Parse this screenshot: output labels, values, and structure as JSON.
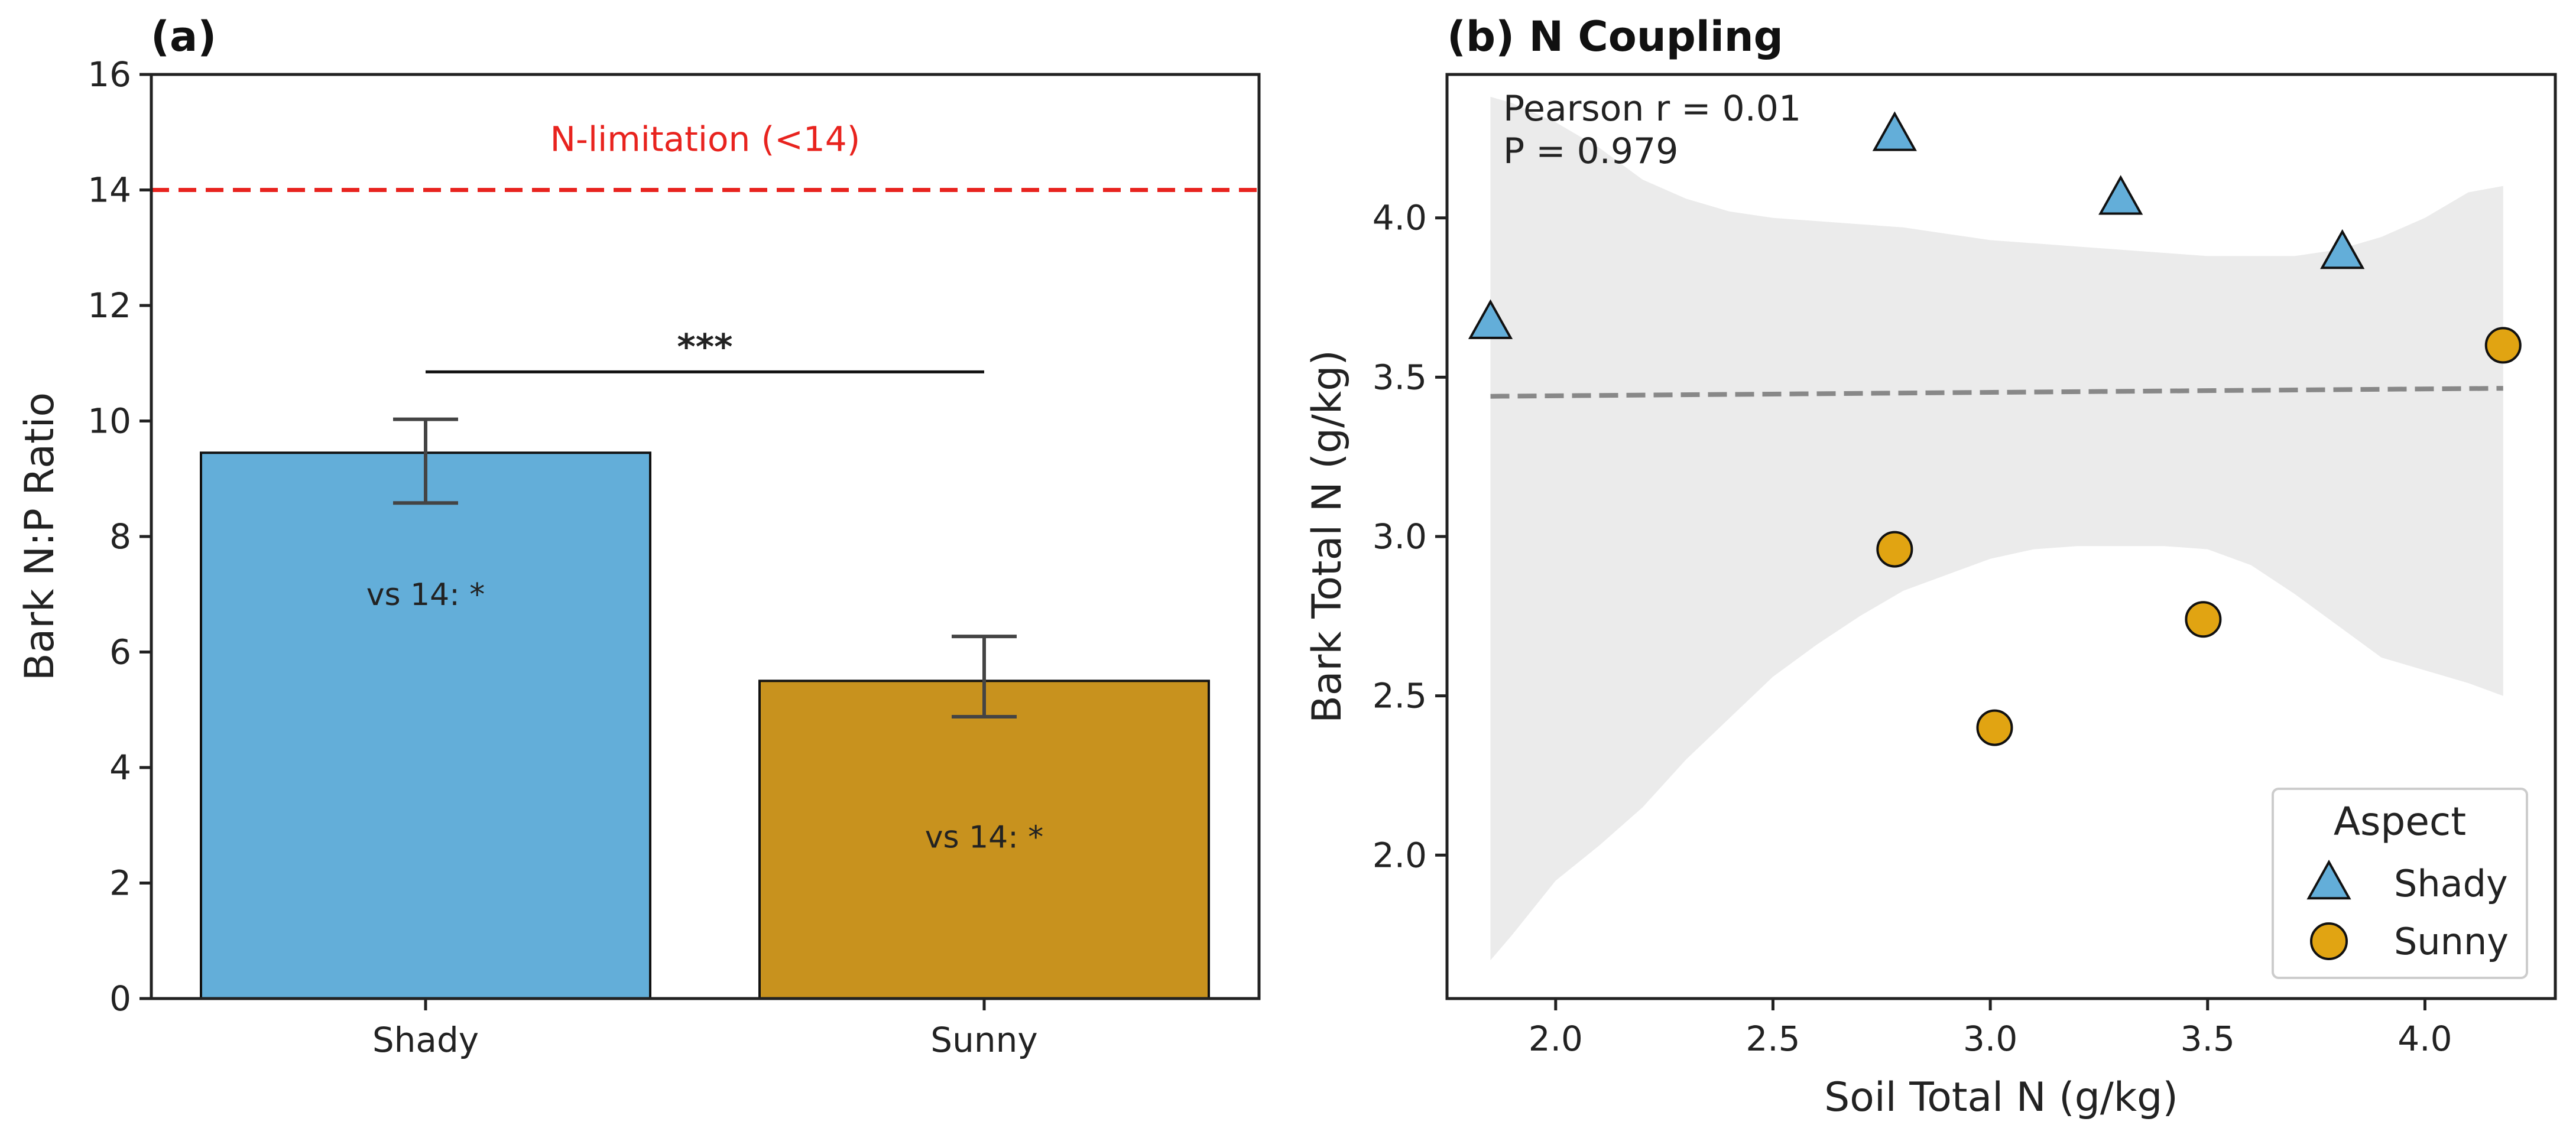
{
  "colors": {
    "shady": "#63AED9",
    "sunny": "#C8921E",
    "sunny_marker": "#E1A412",
    "threshold": "#E8231E",
    "ci_band": "#EBEBEB",
    "fit_line": "#888888",
    "error_bar": "#444444"
  },
  "chart_data": [
    {
      "type": "bar",
      "title": "(a)",
      "xlabel": "",
      "ylabel": "Bark N:P Ratio",
      "categories": [
        "Shady",
        "Sunny"
      ],
      "values": [
        9.45,
        5.5
      ],
      "errors_low": [
        8.58,
        4.88
      ],
      "errors_high": [
        10.03,
        6.27
      ],
      "bar_annotations": [
        "vs 14: *",
        "vs 14: *"
      ],
      "annotation_y": [
        7.0,
        2.8
      ],
      "ylim": [
        0,
        16
      ],
      "yticks": [
        0,
        2,
        4,
        6,
        8,
        10,
        12,
        14,
        16
      ],
      "ytick_labels": [
        "0",
        "2",
        "4",
        "6",
        "8",
        "10",
        "12",
        "14",
        "16"
      ],
      "reference_line": {
        "y": 14,
        "label": "N-limitation (<14)",
        "style": "dashed"
      },
      "significance": {
        "label": "***",
        "y": 10.85
      },
      "grid": false
    },
    {
      "type": "scatter",
      "title": "(b) N Coupling",
      "xlabel": "Soil Total N (g/kg)",
      "ylabel": "Bark Total N (g/kg)",
      "xlim": [
        1.75,
        4.3
      ],
      "ylim": [
        1.55,
        4.45
      ],
      "xticks": [
        2.0,
        2.5,
        3.0,
        3.5,
        4.0
      ],
      "xtick_labels": [
        "2.0",
        "2.5",
        "3.0",
        "3.5",
        "4.0"
      ],
      "yticks": [
        2.0,
        2.5,
        3.0,
        3.5,
        4.0
      ],
      "ytick_labels": [
        "2.0",
        "2.5",
        "3.0",
        "3.5",
        "4.0"
      ],
      "series": [
        {
          "name": "Shady",
          "marker": "triangle",
          "x": [
            1.85,
            2.78,
            3.3,
            3.81
          ],
          "y": [
            3.67,
            4.26,
            4.06,
            3.89
          ]
        },
        {
          "name": "Sunny",
          "marker": "circle",
          "x": [
            2.78,
            3.01,
            3.49,
            4.18
          ],
          "y": [
            2.96,
            2.4,
            2.74,
            3.6
          ]
        }
      ],
      "fit_line": {
        "x": [
          1.85,
          4.18
        ],
        "y": [
          3.44,
          3.465
        ],
        "style": "dashed"
      },
      "confidence_band": {
        "x": [
          1.85,
          1.9,
          2.0,
          2.1,
          2.2,
          2.3,
          2.4,
          2.5,
          2.6,
          2.7,
          2.8,
          2.9,
          3.0,
          3.1,
          3.2,
          3.3,
          3.4,
          3.5,
          3.6,
          3.7,
          3.8,
          3.9,
          4.0,
          4.1,
          4.18
        ],
        "upper": [
          4.38,
          4.36,
          4.3,
          4.22,
          4.12,
          4.06,
          4.02,
          4.0,
          3.99,
          3.98,
          3.97,
          3.95,
          3.93,
          3.92,
          3.91,
          3.9,
          3.89,
          3.88,
          3.88,
          3.88,
          3.9,
          3.94,
          4.0,
          4.08,
          4.1
        ],
        "lower": [
          1.67,
          1.75,
          1.92,
          2.03,
          2.15,
          2.3,
          2.43,
          2.56,
          2.66,
          2.75,
          2.83,
          2.88,
          2.93,
          2.96,
          2.97,
          2.97,
          2.97,
          2.96,
          2.91,
          2.82,
          2.72,
          2.62,
          2.58,
          2.54,
          2.5
        ]
      },
      "stats": {
        "line1": "Pearson r = 0.01",
        "line2": "P = 0.979"
      },
      "legend": {
        "title": "Aspect",
        "entries": [
          "Shady",
          "Sunny"
        ],
        "position": "bottom-right"
      },
      "grid": false
    }
  ]
}
